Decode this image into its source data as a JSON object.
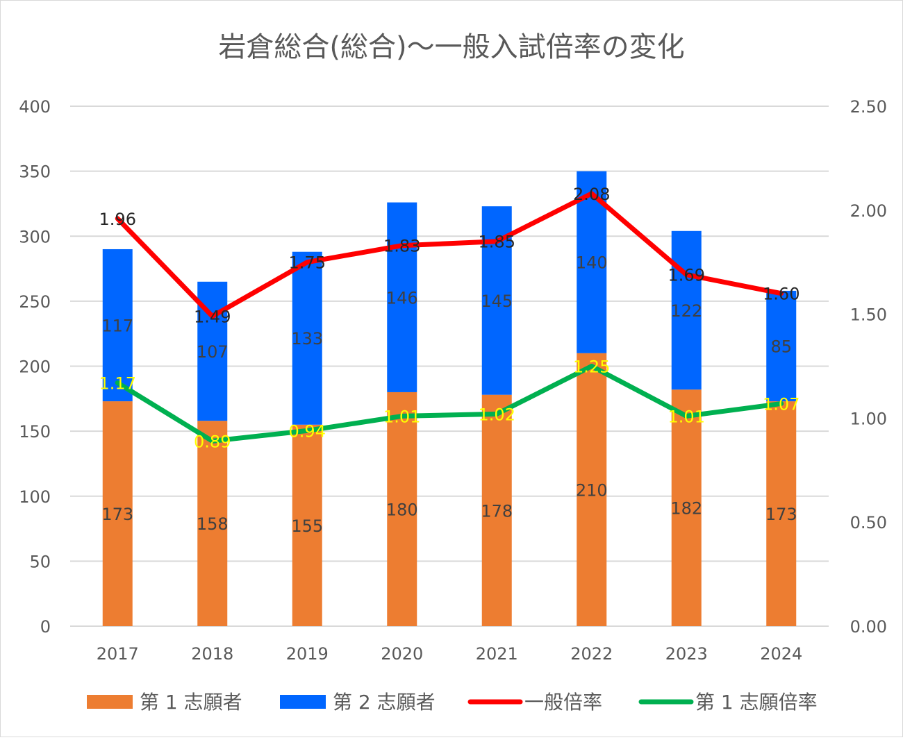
{
  "chart_data": {
    "type": "bar",
    "title": "岩倉総合(総合)〜一般入試倍率の変化",
    "categories": [
      "2017",
      "2018",
      "2019",
      "2020",
      "2021",
      "2022",
      "2023",
      "2024"
    ],
    "y_left": {
      "ylim": [
        0,
        400
      ],
      "ticks": [
        "0",
        "50",
        "100",
        "150",
        "200",
        "250",
        "300",
        "350",
        "400"
      ],
      "tick_values": [
        0,
        50,
        100,
        150,
        200,
        250,
        300,
        350,
        400
      ]
    },
    "y_right": {
      "ylim": [
        0,
        2.5
      ],
      "ticks": [
        "0.00",
        "0.50",
        "1.00",
        "1.50",
        "2.00",
        "2.50"
      ],
      "tick_values": [
        0,
        0.5,
        1.0,
        1.5,
        2.0,
        2.5
      ]
    },
    "grid": true,
    "legend_position": "bottom",
    "series": [
      {
        "name": "第 1 志願者",
        "kind": "bar",
        "axis": "left",
        "color": "#ed7d31",
        "values": [
          173,
          158,
          155,
          180,
          178,
          210,
          182,
          173
        ],
        "labels": [
          "173",
          "158",
          "155",
          "180",
          "178",
          "210",
          "182",
          "173"
        ]
      },
      {
        "name": "第 2 志願者",
        "kind": "bar",
        "axis": "left",
        "color": "#0066ff",
        "values": [
          117,
          107,
          133,
          146,
          145,
          140,
          122,
          85
        ],
        "labels": [
          "117",
          "107",
          "133",
          "146",
          "145",
          "140",
          "122",
          "85"
        ]
      },
      {
        "name": "一般倍率",
        "kind": "line",
        "axis": "right",
        "color": "#ff0000",
        "values": [
          1.96,
          1.49,
          1.75,
          1.83,
          1.85,
          2.08,
          1.69,
          1.6
        ],
        "labels": [
          "1.96",
          "1.49",
          "1.75",
          "1.83",
          "1.85",
          "2.08",
          "1.69",
          "1.60"
        ]
      },
      {
        "name": "第 1 志願倍率",
        "kind": "line",
        "axis": "right",
        "color": "#00b050",
        "values": [
          1.17,
          0.89,
          0.94,
          1.01,
          1.02,
          1.25,
          1.01,
          1.07
        ],
        "labels": [
          "1.17",
          "0.89",
          "0.94",
          "1.01",
          "1.02",
          "1.25",
          "1.01",
          "1.07"
        ]
      }
    ]
  }
}
